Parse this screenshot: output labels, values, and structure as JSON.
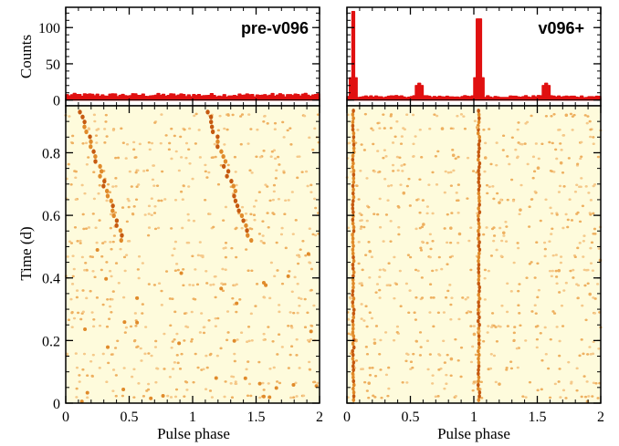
{
  "chart_data": [
    {
      "type": "bar",
      "panel": "top-left",
      "title": "pre-v096",
      "xlabel": "",
      "ylabel": "Counts",
      "xlim": [
        0,
        2
      ],
      "ylim": [
        -8,
        128
      ],
      "yticks": [
        0,
        50,
        100
      ],
      "xticks": [
        0,
        0.5,
        1,
        1.5,
        2
      ],
      "xtick_labels": [
        "",
        "",
        "",
        "",
        ""
      ],
      "color": "#e01010",
      "bins": 100,
      "baseline": 4,
      "noise": 5,
      "peaks": []
    },
    {
      "type": "bar",
      "panel": "top-right",
      "title": "v096+",
      "xlabel": "",
      "ylabel": "",
      "xlim": [
        0,
        2
      ],
      "ylim": [
        -8,
        128
      ],
      "yticks": [
        0,
        50,
        100
      ],
      "xticks": [
        0,
        0.5,
        1,
        1.5,
        2
      ],
      "xtick_labels": [
        "",
        "",
        "",
        "",
        ""
      ],
      "color": "#e01010",
      "bins": 100,
      "baseline": 3,
      "noise": 3,
      "peaks": [
        {
          "x": 0.05,
          "value": 122
        },
        {
          "x": 0.57,
          "value": 23
        },
        {
          "x": 1.04,
          "value": 122
        },
        {
          "x": 1.57,
          "value": 23
        }
      ]
    },
    {
      "type": "heatmap",
      "panel": "bottom-left",
      "xlabel": "Pulse phase",
      "ylabel": "Time (d)",
      "xlim": [
        0,
        2
      ],
      "ylim": [
        0,
        0.95
      ],
      "xticks": [
        0,
        0.5,
        1,
        1.5,
        2
      ],
      "xtick_labels": [
        "0",
        "0.5",
        "1",
        "1.5",
        "2"
      ],
      "yticks": [
        0,
        0.2,
        0.4,
        0.6,
        0.8
      ],
      "ytick_labels": [
        "0",
        "0.2",
        "0.4",
        "0.6",
        "0.8"
      ],
      "background": "#fefbdc",
      "dot_colors": [
        "#f5c98a",
        "#eeb060",
        "#e08a2a",
        "#c65a10"
      ],
      "pattern": "drifting",
      "drift_tracks": [
        {
          "x0": 0.12,
          "y0": 0.93,
          "x1": 0.45,
          "y1": 0.52
        },
        {
          "x0": 1.12,
          "y0": 0.93,
          "x1": 1.45,
          "y1": 0.52
        }
      ]
    },
    {
      "type": "heatmap",
      "panel": "bottom-right",
      "xlabel": "Pulse phase",
      "ylabel": "",
      "xlim": [
        0,
        2
      ],
      "ylim": [
        0,
        0.95
      ],
      "xticks": [
        0,
        0.5,
        1,
        1.5,
        2
      ],
      "xtick_labels": [
        "0",
        "0.5",
        "1",
        "1.5",
        "2"
      ],
      "yticks": [
        0,
        0.2,
        0.4,
        0.6,
        0.8
      ],
      "ytick_labels": [
        "",
        "",
        "",
        "",
        ""
      ],
      "background": "#fefbdc",
      "dot_colors": [
        "#f5c98a",
        "#eeb060",
        "#e08a2a",
        "#c65a10"
      ],
      "pattern": "aligned",
      "aligned_phases": [
        0.05,
        1.04
      ]
    }
  ]
}
